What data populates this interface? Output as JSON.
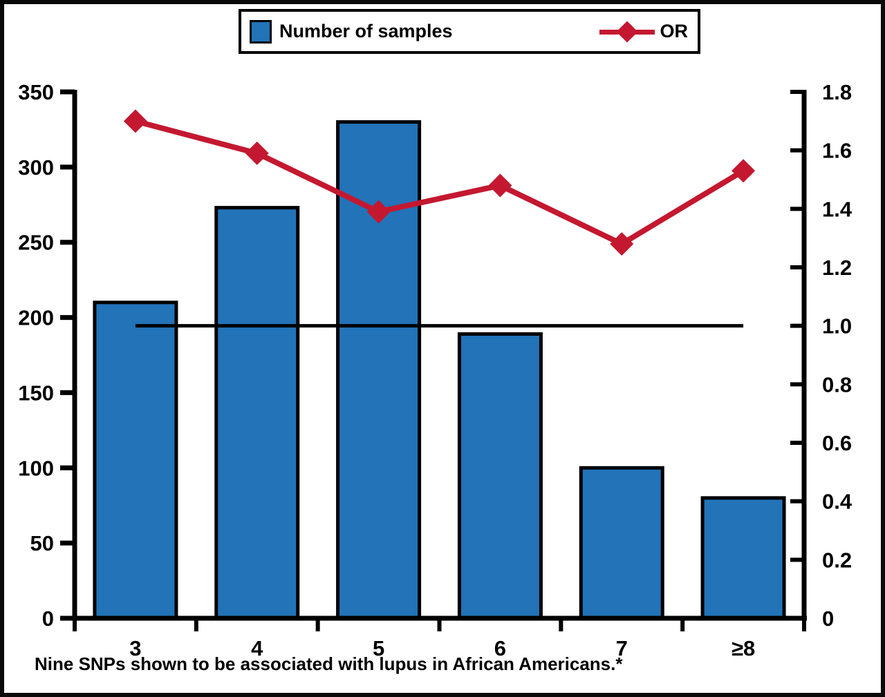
{
  "figure": {
    "caption": "Nine SNPs shown to be associated with lupus in African Americans.*",
    "background": "#ffffff",
    "border_color": "#0a0a0a"
  },
  "legend": {
    "position": "top",
    "items": [
      {
        "label": "Number of samples",
        "type": "bar-swatch",
        "color": "#2273b8"
      },
      {
        "label": "OR",
        "type": "line-diamond",
        "color": "#c41830"
      }
    ]
  },
  "chart_data": {
    "type": "bar",
    "subtype": "bar+line dual-axis",
    "categories": [
      "3",
      "4",
      "5",
      "6",
      "7",
      "≥8"
    ],
    "series": [
      {
        "name": "Number of samples",
        "type": "bar",
        "axis": "left",
        "color": "#2273b8",
        "outline": "#000000",
        "values": [
          210,
          273,
          330,
          189,
          100,
          80
        ]
      },
      {
        "name": "OR",
        "type": "line",
        "axis": "right",
        "marker": "diamond",
        "color": "#c41830",
        "values": [
          1.7,
          1.59,
          1.39,
          1.48,
          1.28,
          1.53
        ]
      }
    ],
    "left_axis": {
      "min": 0,
      "max": 350,
      "step": 50,
      "ticks": [
        "0",
        "50",
        "100",
        "150",
        "200",
        "250",
        "300",
        "350"
      ]
    },
    "right_axis": {
      "min": 0,
      "max": 1.8,
      "step": 0.2,
      "ticks": [
        "0",
        "0.2",
        "0.4",
        "0.6",
        "0.8",
        "1.0",
        "1.2",
        "1.4",
        "1.6",
        "1.8"
      ]
    },
    "reference_line": {
      "axis": "right",
      "value": 1.0,
      "color": "#000000"
    },
    "grid": false,
    "legend_position": "top",
    "xlabel": "",
    "ylabel_left": "",
    "ylabel_right": ""
  }
}
